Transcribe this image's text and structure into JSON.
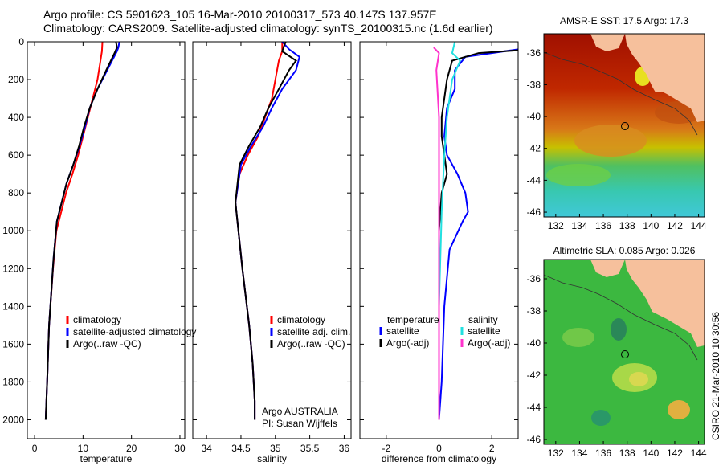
{
  "header": {
    "line1": "Argo profile: CS 5901623_105 16-Mar-2010 20100317_573 40.147S 137.957E",
    "line2": "Climatology: CARS2009. Satellite-adjusted climatology: synTS_20100315.nc (1.6d earlier)"
  },
  "stamp": "CSIRO 21-Mar-2010 10:30:56",
  "colors": {
    "red": "#ff0000",
    "blue": "#0000ff",
    "black": "#000000",
    "cyan": "#22e0e0",
    "magenta": "#ff33cc"
  },
  "chart_data": [
    {
      "type": "line",
      "xlabel": "temperature",
      "ylabel": "",
      "xlim": [
        -1.5,
        31
      ],
      "ylim": [
        2100,
        0
      ],
      "y_reversed": true,
      "xticks": [
        0,
        10,
        20,
        30
      ],
      "yticks": [
        0,
        200,
        400,
        600,
        800,
        1000,
        1200,
        1400,
        1600,
        1800,
        2000
      ],
      "legend": [
        "climatology",
        "satellite-adjusted climatology",
        "Argo(..raw -QC)"
      ],
      "series": [
        {
          "name": "climatology",
          "color": "red",
          "x": [
            14.0,
            13.9,
            13.6,
            13.0,
            12.0,
            11.0,
            10.0,
            9.0,
            7.8,
            6.5,
            5.5,
            4.5,
            3.8,
            3.0,
            2.6,
            2.3
          ],
          "y": [
            0,
            50,
            100,
            200,
            300,
            400,
            500,
            600,
            700,
            800,
            900,
            1000,
            1200,
            1500,
            1800,
            2000
          ]
        },
        {
          "name": "satellite-adjusted climatology",
          "color": "blue",
          "x": [
            17.5,
            17.3,
            17.0,
            15.0,
            13.0,
            11.4,
            10.4,
            9.3,
            8.0,
            6.6,
            5.6,
            4.6,
            3.9,
            3.0,
            2.6,
            2.3
          ],
          "y": [
            0,
            30,
            50,
            150,
            250,
            350,
            450,
            550,
            650,
            750,
            850,
            950,
            1150,
            1500,
            1800,
            2000
          ]
        },
        {
          "name": "Argo(..raw -QC)",
          "color": "black",
          "x": [
            16.8,
            17.0,
            16.5,
            14.8,
            13.0,
            11.4,
            10.2,
            9.2,
            8.0,
            6.6,
            5.6,
            4.6,
            3.9,
            3.0,
            2.6,
            2.3
          ],
          "y": [
            0,
            30,
            60,
            150,
            250,
            350,
            450,
            550,
            650,
            750,
            850,
            950,
            1150,
            1500,
            1800,
            2000
          ]
        }
      ]
    },
    {
      "type": "line",
      "xlabel": "salinity",
      "xlim": [
        33.8,
        36.1
      ],
      "ylim": [
        2100,
        0
      ],
      "y_reversed": true,
      "xticks": [
        34,
        34.5,
        35,
        35.5,
        36
      ],
      "legend": [
        "climatology",
        "satellite adj. clim.",
        "Argo(..raw -QC)"
      ],
      "annotation": [
        "Argo AUSTRALIA",
        "PI: Susan Wijffels"
      ],
      "series": [
        {
          "name": "climatology",
          "color": "red",
          "x": [
            35.1,
            35.1,
            35.05,
            35.0,
            34.95,
            34.85,
            34.75,
            34.6,
            34.48,
            34.42,
            34.52,
            34.62,
            34.67,
            34.7,
            34.7
          ],
          "y": [
            0,
            50,
            100,
            200,
            300,
            400,
            500,
            600,
            700,
            850,
            1200,
            1500,
            1700,
            1900,
            2000
          ]
        },
        {
          "name": "satellite adj. clim.",
          "color": "blue",
          "x": [
            35.1,
            35.2,
            35.35,
            35.3,
            35.1,
            34.95,
            34.82,
            34.65,
            34.5,
            34.42,
            34.52,
            34.62,
            34.67,
            34.7,
            34.7
          ],
          "y": [
            0,
            40,
            80,
            150,
            250,
            350,
            450,
            550,
            650,
            850,
            1200,
            1500,
            1700,
            1900,
            2000
          ]
        },
        {
          "name": "Argo(..raw -QC)",
          "color": "black",
          "x": [
            35.15,
            35.1,
            35.3,
            35.2,
            35.05,
            34.9,
            34.78,
            34.62,
            34.48,
            34.42,
            34.52,
            34.62,
            34.67,
            34.7,
            34.7
          ],
          "y": [
            0,
            50,
            100,
            150,
            250,
            350,
            450,
            550,
            650,
            850,
            1200,
            1500,
            1700,
            1900,
            2000
          ]
        }
      ]
    },
    {
      "type": "line",
      "xlabel": "difference from climatology",
      "xlim": [
        -3,
        3
      ],
      "ylim": [
        2100,
        0
      ],
      "y_reversed": true,
      "xticks": [
        -2,
        0,
        2
      ],
      "legend_titles": [
        "temperature",
        "salinity"
      ],
      "legend": [
        "satellite",
        "Argo(-adj)",
        "satellite",
        "Argo(-adj)"
      ],
      "series": [
        {
          "name": "satellite",
          "group": "temperature",
          "color": "blue",
          "x": [
            3.0,
            2.0,
            1.0,
            0.6,
            0.6,
            0.3,
            0.2,
            0.3,
            0.7,
            1.0,
            1.1,
            0.9,
            0.4,
            0.2,
            0.1,
            0.0
          ],
          "y": [
            40,
            60,
            80,
            150,
            250,
            350,
            500,
            600,
            700,
            800,
            900,
            950,
            1100,
            1400,
            1800,
            2000
          ]
        },
        {
          "name": "Argo(-adj)",
          "group": "temperature",
          "color": "black",
          "x": [
            3.0,
            1.5,
            0.5,
            0.3,
            0.2,
            0.1,
            0.1,
            0.2,
            0.3,
            0.1,
            0.0,
            0.0,
            0.0
          ],
          "y": [
            45,
            60,
            100,
            200,
            300,
            400,
            500,
            600,
            700,
            800,
            1000,
            1400,
            2000
          ]
        },
        {
          "name": "satellite",
          "group": "salinity",
          "color": "cyan",
          "x": [
            0.6,
            0.5,
            0.8,
            0.5,
            0.4,
            0.3,
            0.2,
            0.1,
            0.0,
            0.0
          ],
          "y": [
            0,
            60,
            100,
            200,
            300,
            400,
            600,
            900,
            1400,
            2000
          ]
        },
        {
          "name": "Argo(-adj)",
          "group": "salinity",
          "color": "magenta",
          "x": [
            -0.2,
            0.0,
            -0.1,
            0.0,
            0.0
          ],
          "y": [
            30,
            60,
            150,
            400,
            2000
          ]
        }
      ]
    },
    {
      "type": "heatmap",
      "title": "AMSR-E SST: 17.5 Argo: 17.3",
      "xticks": [
        132,
        134,
        136,
        138,
        140,
        142,
        144
      ],
      "yticks": [
        -36,
        -38,
        -40,
        -42,
        -44,
        -46
      ],
      "xlim": [
        131,
        144.5
      ],
      "ylim": [
        -46.3,
        -34.8
      ],
      "marker": {
        "lon": 137.957,
        "lat": -40.147
      }
    },
    {
      "type": "heatmap",
      "title": "Altimetric SLA: 0.085 Argo: 0.026",
      "xticks": [
        132,
        134,
        136,
        138,
        140,
        142,
        144
      ],
      "yticks": [
        -36,
        -38,
        -40,
        -42,
        -44,
        -46
      ],
      "xlim": [
        131,
        144.5
      ],
      "ylim": [
        -46.3,
        -34.8
      ],
      "marker": {
        "lon": 137.957,
        "lat": -40.147
      }
    }
  ]
}
